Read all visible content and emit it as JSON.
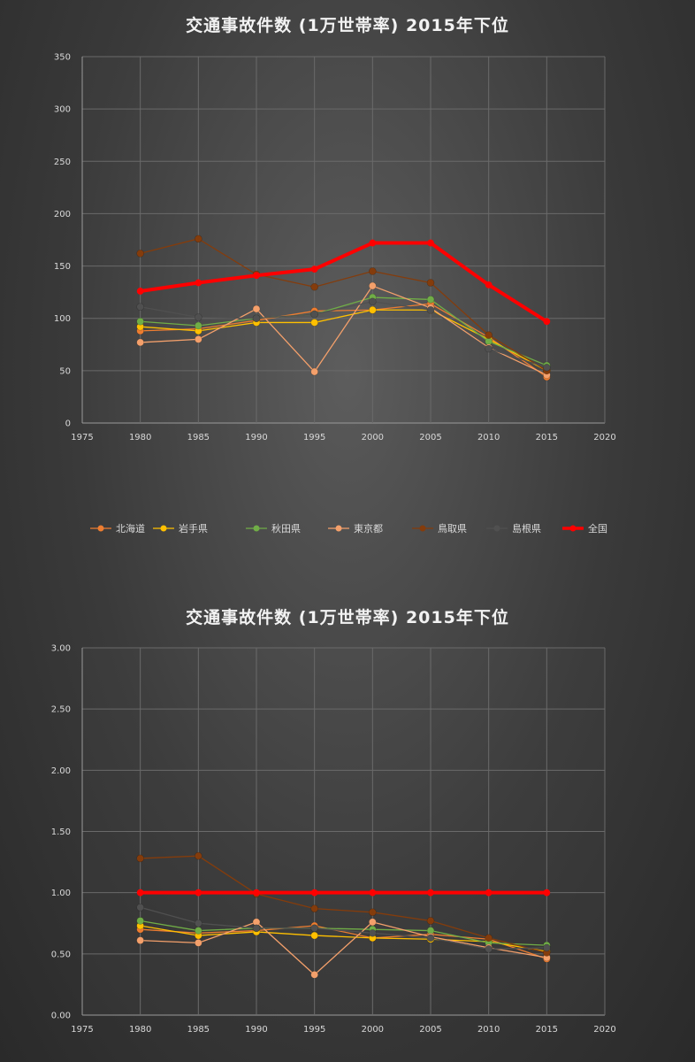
{
  "chart_data": [
    {
      "type": "line",
      "title": "交通事故件数 (1万世帯率) 2015年下位",
      "xlim": [
        1975,
        2020
      ],
      "xticks": [
        1975,
        1980,
        1985,
        1990,
        1995,
        2000,
        2005,
        2010,
        2015,
        2020
      ],
      "ylim": [
        0,
        350
      ],
      "yticks": [
        0,
        50,
        100,
        150,
        200,
        250,
        300,
        350
      ],
      "ytick_labels": [
        "0",
        "50",
        "100",
        "150",
        "200",
        "250",
        "300",
        "350"
      ],
      "grid": true,
      "legend": "bottom",
      "x": [
        1980,
        1985,
        1990,
        1995,
        2000,
        2005,
        2010,
        2015
      ],
      "series": [
        {
          "name": "北海道",
          "color": "#ed7d31",
          "values": [
            88,
            90,
            98,
            107,
            108,
            114,
            82,
            44
          ]
        },
        {
          "name": "岩手県",
          "color": "#ffc000",
          "values": [
            92,
            88,
            96,
            96,
            108,
            108,
            80,
            50
          ]
        },
        {
          "name": "秋田県",
          "color": "#70ad47",
          "values": [
            97,
            93,
            100,
            104,
            120,
            118,
            78,
            55
          ]
        },
        {
          "name": "東京都",
          "color": "#f4a06b",
          "values": [
            77,
            80,
            109,
            49,
            131,
            110,
            72,
            46
          ]
        },
        {
          "name": "鳥取県",
          "color": "#843c0c",
          "values": [
            162,
            176,
            142,
            130,
            145,
            134,
            84,
            50
          ]
        },
        {
          "name": "島根県",
          "color": "#505050",
          "values": [
            111,
            101,
            100,
            104,
            116,
            108,
            71,
            53
          ]
        },
        {
          "name": "全国",
          "color": "#ff0000",
          "values": [
            126,
            134,
            141,
            147,
            172,
            172,
            132,
            97
          ]
        }
      ]
    },
    {
      "type": "line",
      "title": "交通事故件数 (1万世帯率) 2015年下位",
      "xlim": [
        1975,
        2020
      ],
      "xticks": [
        1975,
        1980,
        1985,
        1990,
        1995,
        2000,
        2005,
        2010,
        2015,
        2020
      ],
      "ylim": [
        0,
        3
      ],
      "yticks": [
        0,
        0.5,
        1,
        1.5,
        2,
        2.5,
        3
      ],
      "ytick_labels": [
        "0.00",
        "0.50",
        "1.00",
        "1.50",
        "2.00",
        "2.50",
        "3.00"
      ],
      "grid": true,
      "x": [
        1980,
        1985,
        1990,
        1995,
        2000,
        2005,
        2010,
        2015
      ],
      "series": [
        {
          "name": "北海道",
          "color": "#ed7d31",
          "values": [
            0.7,
            0.67,
            0.69,
            0.73,
            0.63,
            0.66,
            0.62,
            0.46
          ]
        },
        {
          "name": "岩手県",
          "color": "#ffc000",
          "values": [
            0.73,
            0.65,
            0.68,
            0.65,
            0.63,
            0.62,
            0.6,
            0.52
          ]
        },
        {
          "name": "秋田県",
          "color": "#70ad47",
          "values": [
            0.77,
            0.69,
            0.71,
            0.71,
            0.7,
            0.69,
            0.59,
            0.57
          ]
        },
        {
          "name": "東京都",
          "color": "#f4a06b",
          "values": [
            0.61,
            0.59,
            0.76,
            0.33,
            0.76,
            0.64,
            0.55,
            0.47
          ]
        },
        {
          "name": "鳥取県",
          "color": "#843c0c",
          "values": [
            1.28,
            1.3,
            0.99,
            0.87,
            0.84,
            0.77,
            0.63,
            0.51
          ]
        },
        {
          "name": "島根県",
          "color": "#505050",
          "values": [
            0.88,
            0.75,
            0.71,
            0.71,
            0.67,
            0.63,
            0.54,
            0.55
          ]
        },
        {
          "name": "全国",
          "color": "#ff0000",
          "values": [
            1.0,
            1.0,
            1.0,
            1.0,
            1.0,
            1.0,
            1.0,
            1.0
          ]
        }
      ]
    }
  ]
}
